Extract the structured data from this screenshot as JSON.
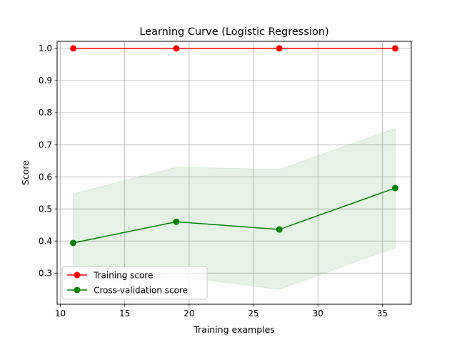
{
  "chart_data": {
    "type": "line",
    "title": "Learning Curve (Logistic Regression)",
    "xlabel": "Training examples",
    "ylabel": "Score",
    "xlim": [
      9.75,
      37.25
    ],
    "ylim": [
      0.203,
      1.022
    ],
    "xticks": [
      10,
      15,
      20,
      25,
      30,
      35
    ],
    "yticks": [
      0.3,
      0.4,
      0.5,
      0.6,
      0.7,
      0.8,
      0.9,
      1.0
    ],
    "xtick_labels": [
      "10",
      "15",
      "20",
      "25",
      "30",
      "35"
    ],
    "ytick_labels": [
      "0.3",
      "0.4",
      "0.5",
      "0.6",
      "0.7",
      "0.8",
      "0.9",
      "1.0"
    ],
    "grid": true,
    "legend_position": "lower-left",
    "x": [
      11,
      19,
      27,
      36
    ],
    "series": [
      {
        "name": "Training score",
        "color": "#ff0000",
        "values": [
          1.0,
          1.0,
          1.0,
          1.0
        ],
        "band_lower": [
          1.0,
          1.0,
          1.0,
          1.0
        ],
        "band_upper": [
          1.0,
          1.0,
          1.0,
          1.0
        ]
      },
      {
        "name": "Cross-validation score",
        "color": "#008000",
        "values": [
          0.394,
          0.46,
          0.436,
          0.565
        ],
        "band_lower": [
          0.243,
          0.291,
          0.249,
          0.379
        ],
        "band_upper": [
          0.547,
          0.63,
          0.623,
          0.751
        ]
      }
    ]
  }
}
